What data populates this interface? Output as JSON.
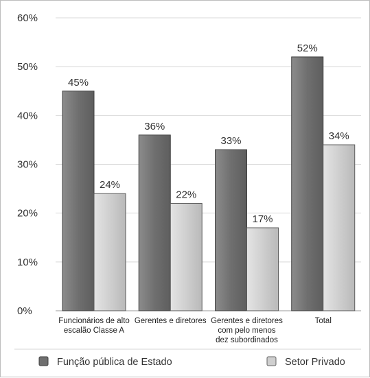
{
  "chart_data": {
    "type": "bar",
    "title": "",
    "xlabel": "",
    "ylabel": "",
    "ylim": [
      0,
      60
    ],
    "yticks": [
      "0%",
      "10%",
      "20%",
      "30%",
      "40%",
      "50%",
      "60%"
    ],
    "y_unit": "%",
    "grid": true,
    "legend_position": "bottom",
    "categories": [
      [
        "Funcionários de alto",
        "escalão Classe A"
      ],
      [
        "Gerentes e diretores"
      ],
      [
        "Gerentes e diretores",
        "com pelo menos",
        "dez subordinados"
      ],
      [
        "Total"
      ]
    ],
    "series": [
      {
        "name": "Função pública de Estado",
        "values": [
          45,
          36,
          33,
          52
        ],
        "color": "#7a7a7a"
      },
      {
        "name": "Setor Privado",
        "values": [
          24,
          22,
          17,
          34
        ],
        "color": "#c6c6c6"
      }
    ]
  }
}
